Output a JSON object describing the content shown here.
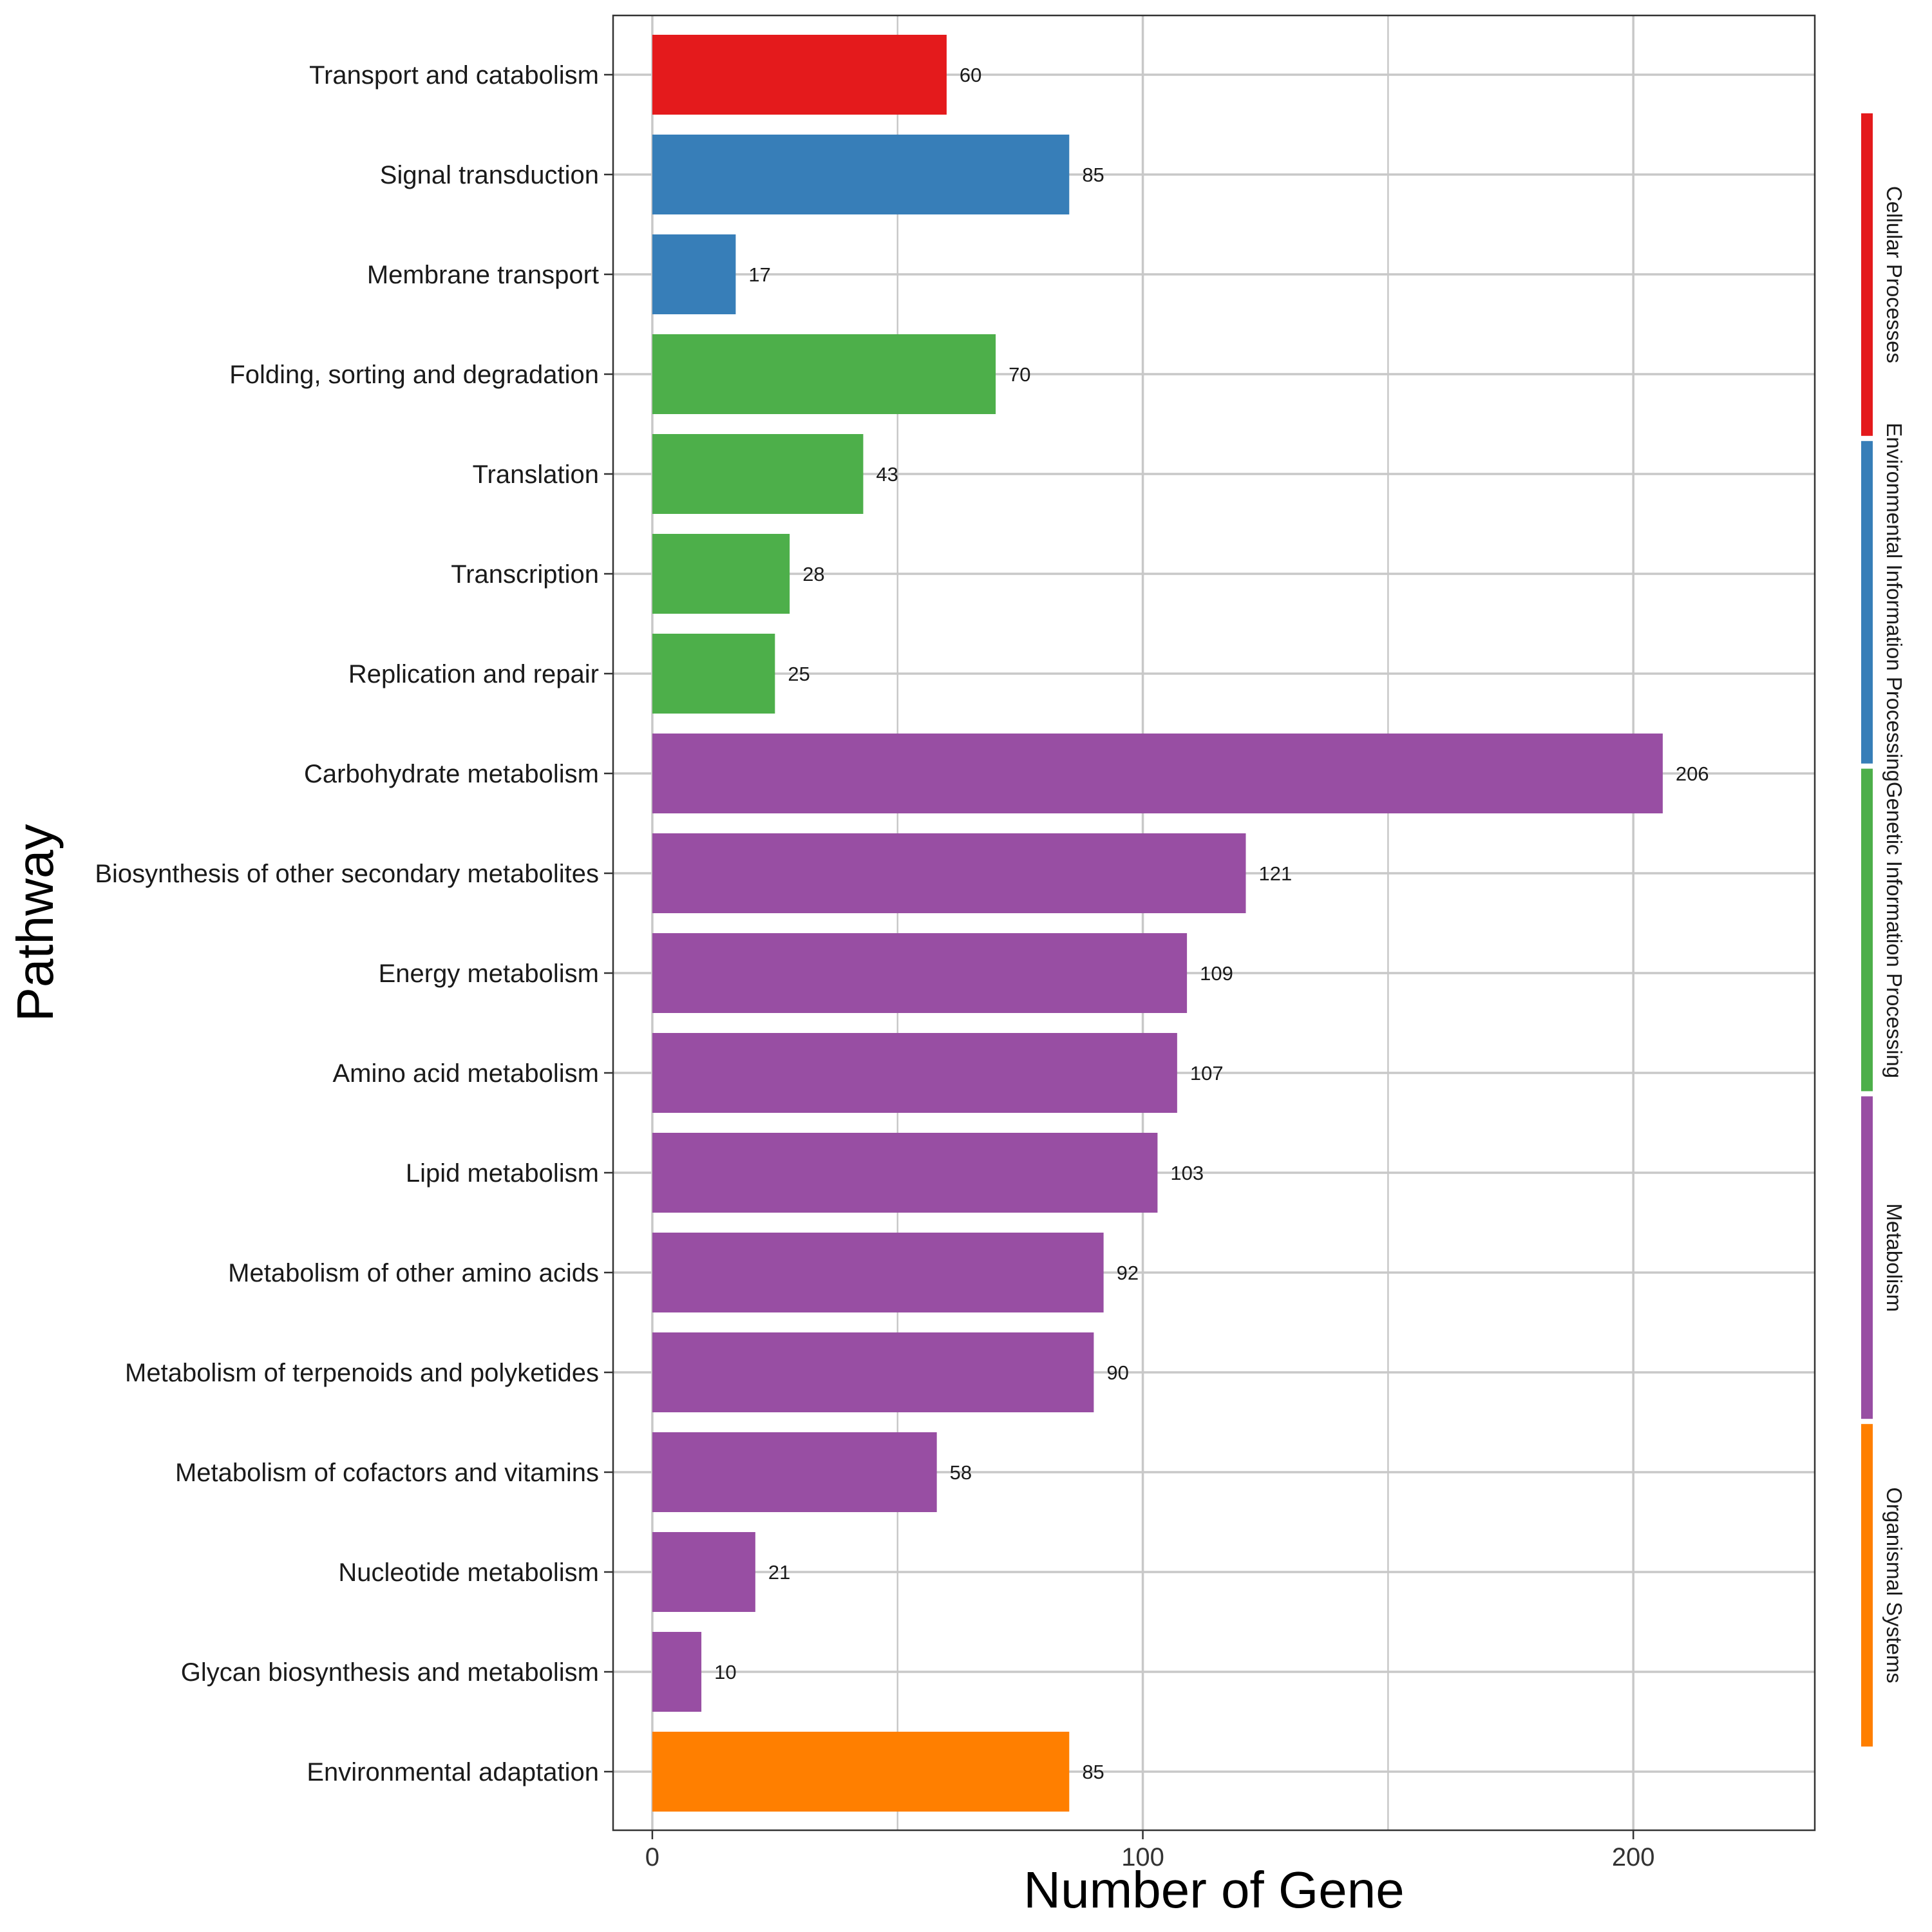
{
  "chart_data": {
    "type": "bar",
    "orientation": "horizontal",
    "xlabel": "Number of Gene",
    "ylabel": "Pathway",
    "xlim": [
      -8,
      237
    ],
    "xticks": [
      0,
      100,
      200
    ],
    "xticks_text": [
      "0",
      "100",
      "200"
    ],
    "grid": true,
    "legend_position": "right (vertical colored strips)",
    "categories": [
      "Transport and catabolism",
      "Signal transduction",
      "Membrane transport",
      "Folding, sorting and degradation",
      "Translation",
      "Transcription",
      "Replication and repair",
      "Carbohydrate metabolism",
      "Biosynthesis of other secondary metabolites",
      "Energy metabolism",
      "Amino acid metabolism",
      "Lipid metabolism",
      "Metabolism of other amino acids",
      "Metabolism of terpenoids and polyketides",
      "Metabolism of cofactors and vitamins",
      "Nucleotide metabolism",
      "Glycan biosynthesis and metabolism",
      "Environmental adaptation"
    ],
    "values": [
      60,
      85,
      17,
      70,
      43,
      28,
      25,
      206,
      121,
      109,
      107,
      103,
      92,
      90,
      58,
      21,
      10,
      85
    ],
    "value_labels": [
      "60",
      "85",
      "17",
      "70",
      "43",
      "28",
      "25",
      "206",
      "121",
      "109",
      "107",
      "103",
      "92",
      "90",
      "58",
      "21",
      "10",
      "85"
    ],
    "groups_per_bar": [
      0,
      1,
      1,
      2,
      2,
      2,
      2,
      3,
      3,
      3,
      3,
      3,
      3,
      3,
      3,
      3,
      3,
      4
    ],
    "groups": [
      {
        "name": "Cellular Processes",
        "color": "#e41a1c"
      },
      {
        "name": "Environmental Information Processing",
        "color": "#377eb8"
      },
      {
        "name": "Genetic Information Processing",
        "color": "#4daf4a"
      },
      {
        "name": "Metabolism",
        "color": "#984ea3"
      },
      {
        "name": "Organismal Systems",
        "color": "#ff7f00"
      }
    ]
  }
}
